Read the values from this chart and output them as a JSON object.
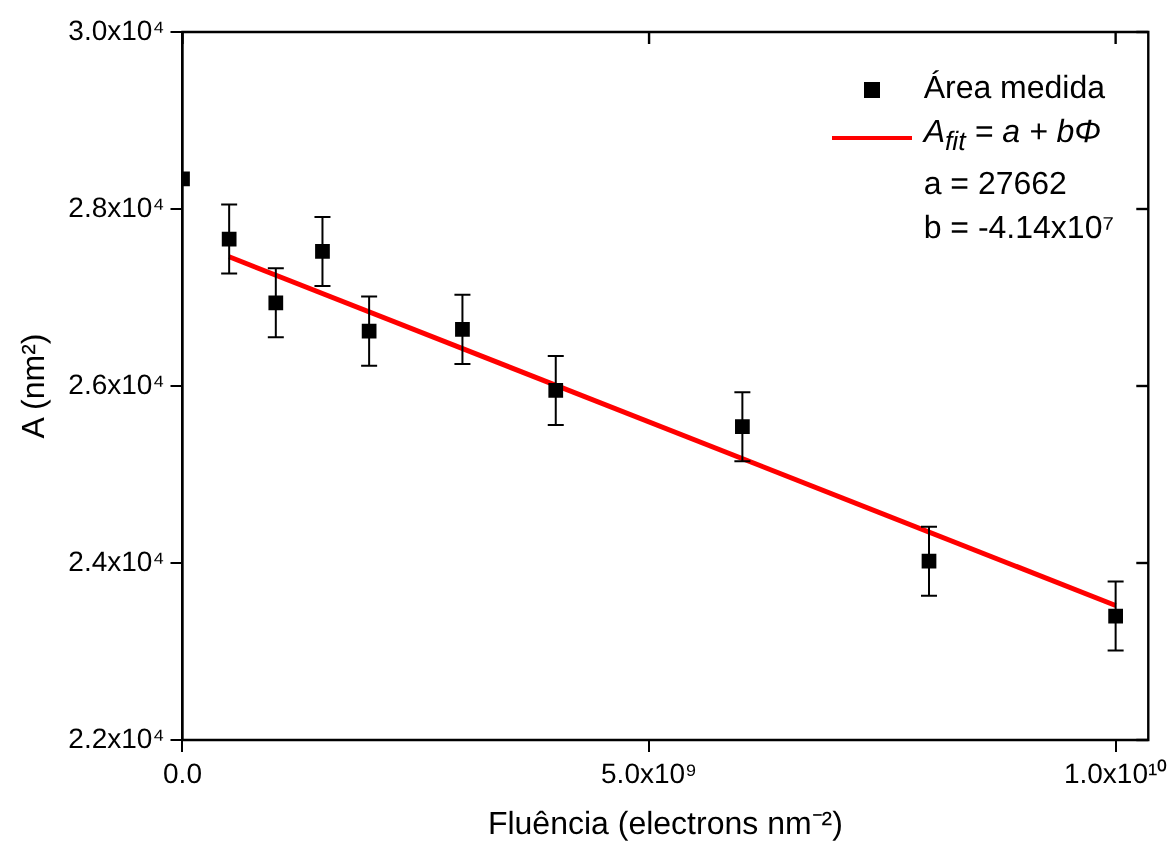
{
  "chart_data": {
    "type": "scatter",
    "xlabel": "Fluência (electrons nm⁻²)",
    "ylabel": "A (nm²)",
    "xlim": [
      0,
      10350000000.0
    ],
    "xticks": [
      {
        "value": 0,
        "label": "0.0"
      },
      {
        "value": 5000000000.0,
        "label": "5.0x10⁹"
      },
      {
        "value": 10000000000.0,
        "label": "1.0x10¹⁰"
      }
    ],
    "ylim": [
      22000,
      30000
    ],
    "yticks": [
      {
        "value": 22000,
        "label": "2.2x10⁴"
      },
      {
        "value": 24000,
        "label": "2.4x10⁴"
      },
      {
        "value": 26000,
        "label": "2.6x10⁴"
      },
      {
        "value": 28000,
        "label": "2.8x10⁴"
      },
      {
        "value": 30000,
        "label": "3.0x10⁴"
      }
    ],
    "grid": false,
    "legend": "top right",
    "marker": "square",
    "series": [
      {
        "name": "Área medida",
        "color": "#000000",
        "x": [
          0,
          500000000.0,
          1000000000.0,
          1500000000.0,
          2000000000.0,
          3000000000.0,
          4000000000.0,
          6000000000.0,
          8000000000.0,
          10000000000.0
        ],
        "values": [
          28340,
          27660,
          26940,
          27520,
          26620,
          26640,
          25950,
          25540,
          24020,
          23400
        ],
        "errors": [
          null,
          390,
          390,
          390,
          390,
          390,
          390,
          390,
          390,
          390
        ]
      },
      {
        "name": "A$_{fit}$ = a + bΦ",
        "type": "line",
        "color": "#ff0000",
        "marker": "none",
        "x": [
          500000000.0,
          10000000000.0
        ],
        "values": [
          27460,
          23520
        ]
      }
    ],
    "annotations": [
      "a = 27662",
      "b = -4.14x10⁷"
    ]
  }
}
